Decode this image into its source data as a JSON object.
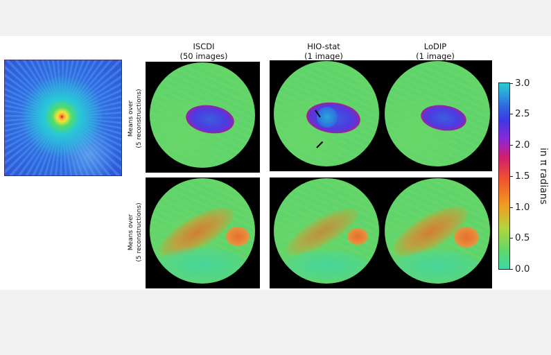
{
  "columns": [
    {
      "name": "ISCDI",
      "subtitle": "(50 images)"
    },
    {
      "name": "HIO-stat",
      "subtitle": "(1 image)"
    },
    {
      "name": "LoDIP",
      "subtitle": "(1 image)"
    }
  ],
  "rows": [
    {
      "label_line1": "Means over",
      "label_line2": "(5 reconstructions)"
    },
    {
      "label_line1": "Means over",
      "label_line2": "(5 reconstructions)"
    }
  ],
  "colorbar": {
    "axis_label": "in π radians",
    "ticks": [
      "3.0",
      "2.5",
      "2.0",
      "1.5",
      "1.0",
      "0.5",
      "0.0"
    ],
    "min": 0.0,
    "max": 3.0,
    "colormap": "rainbow"
  },
  "images": {
    "diffraction_pattern": "diffraction-pattern-image",
    "reconstruction_panels": "phase-reconstruction-images"
  },
  "annotations": {
    "arrows": 2
  }
}
